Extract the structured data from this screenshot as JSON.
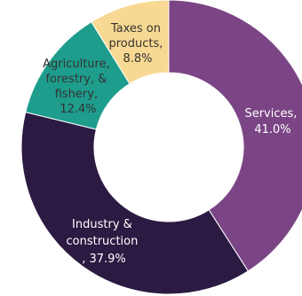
{
  "chart_data": {
    "type": "pie",
    "donut": true,
    "title": "",
    "slices": [
      {
        "label": "Services,",
        "value_text": "41.0%",
        "value": 41.0,
        "color": "#7b4585",
        "text_color": "#ffffff"
      },
      {
        "label": "Industry & construction",
        "value_text": ", 37.9%",
        "value": 37.9,
        "color": "#2b1a42",
        "text_color": "#ffffff"
      },
      {
        "label": "Agriculture, forestry, & fishery,",
        "value_text": "12.4%",
        "value": 12.4,
        "color": "#1e9c8c",
        "text_color": "#333333"
      },
      {
        "label": "Taxes on products,",
        "value_text": "8.8%",
        "value": 8.8,
        "color": "#f8d993",
        "text_color": "#333333"
      }
    ],
    "start": "top",
    "direction": "clockwise",
    "legend": "none"
  }
}
